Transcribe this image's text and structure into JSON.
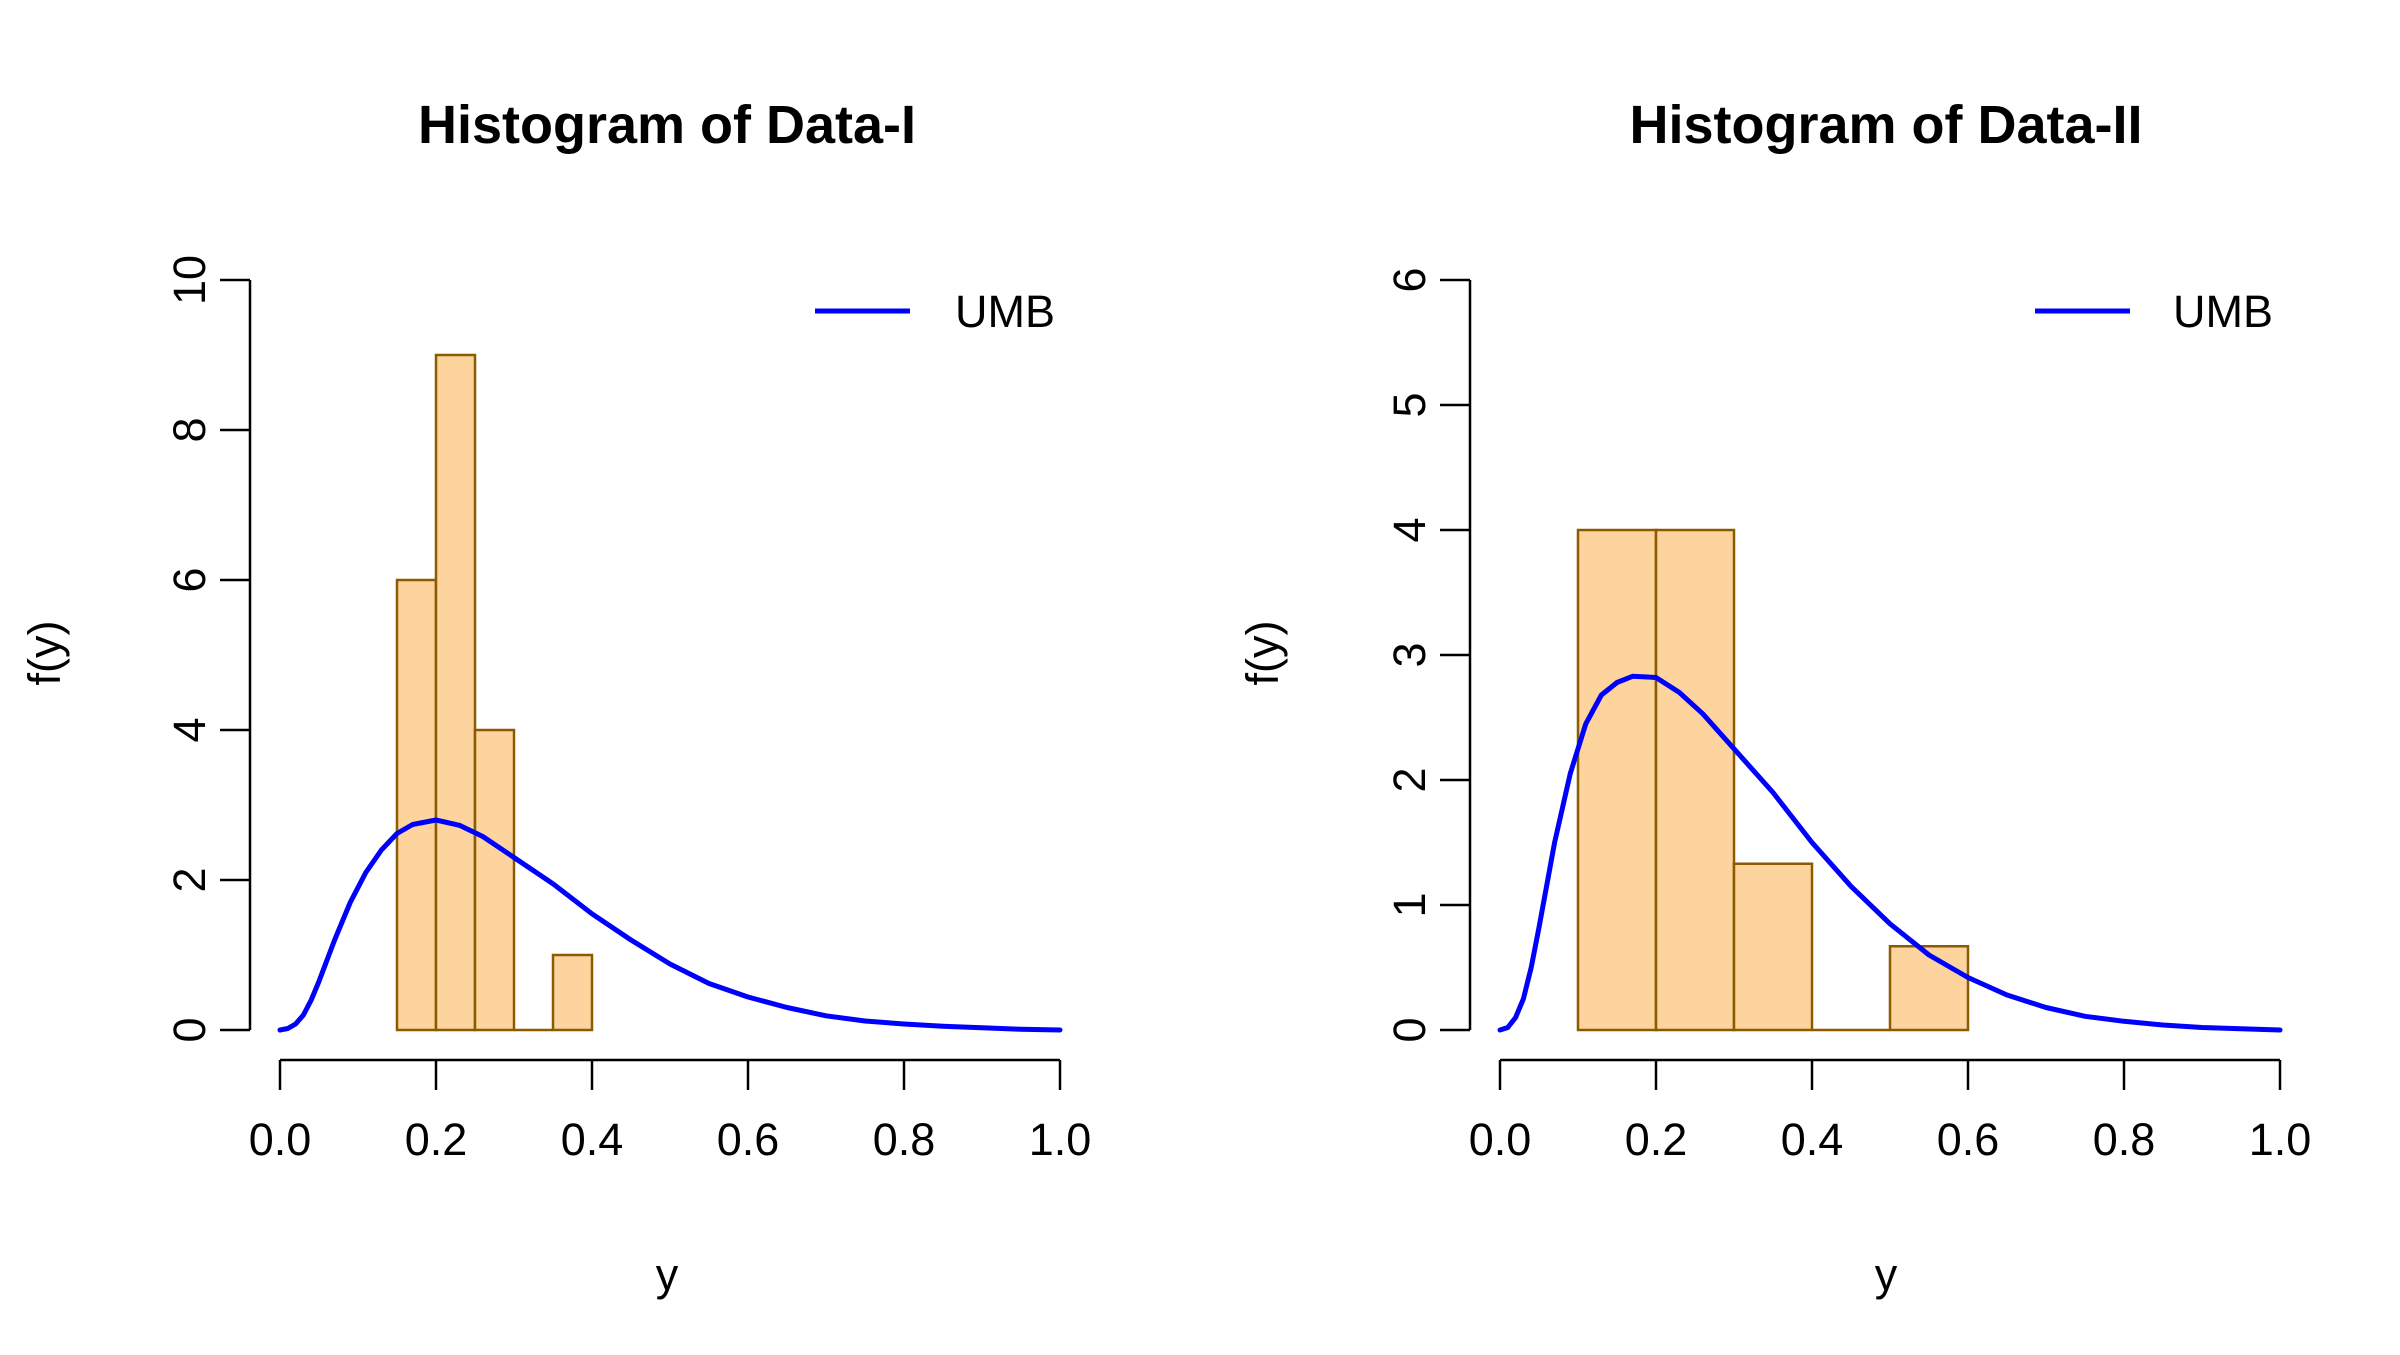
{
  "chart_data": [
    {
      "type": "bar",
      "title": "Histogram of Data-I",
      "xlabel": "y",
      "ylabel": "f(y)",
      "xlim": [
        0,
        1
      ],
      "ylim": [
        0,
        10
      ],
      "xticks": [
        "0.0",
        "0.2",
        "0.4",
        "0.6",
        "0.8",
        "1.0"
      ],
      "yticks": [
        "0",
        "2",
        "4",
        "6",
        "8",
        "10"
      ],
      "bins": [
        {
          "from": 0.15,
          "to": 0.2,
          "density": 6
        },
        {
          "from": 0.2,
          "to": 0.25,
          "density": 9
        },
        {
          "from": 0.25,
          "to": 0.3,
          "density": 4
        },
        {
          "from": 0.3,
          "to": 0.35,
          "density": 0
        },
        {
          "from": 0.35,
          "to": 0.4,
          "density": 1
        }
      ],
      "bar_fill": "#fdd49e",
      "bar_stroke": "#8c5a00",
      "series": [
        {
          "name": "UMB",
          "color": "#0000ff",
          "x": [
            0,
            0.01,
            0.02,
            0.03,
            0.04,
            0.05,
            0.07,
            0.09,
            0.11,
            0.13,
            0.15,
            0.17,
            0.2,
            0.23,
            0.26,
            0.3,
            0.35,
            0.4,
            0.45,
            0.5,
            0.55,
            0.6,
            0.65,
            0.7,
            0.75,
            0.8,
            0.85,
            0.9,
            0.95,
            1.0
          ],
          "y": [
            0,
            0.02,
            0.08,
            0.2,
            0.4,
            0.65,
            1.2,
            1.7,
            2.1,
            2.4,
            2.62,
            2.74,
            2.8,
            2.73,
            2.58,
            2.3,
            1.95,
            1.55,
            1.2,
            0.88,
            0.62,
            0.44,
            0.3,
            0.19,
            0.12,
            0.08,
            0.05,
            0.03,
            0.01,
            0
          ]
        }
      ],
      "legend": {
        "position": "top-right",
        "entries": [
          "UMB"
        ]
      }
    },
    {
      "type": "bar",
      "title": "Histogram of Data-II",
      "xlabel": "y",
      "ylabel": "f(y)",
      "xlim": [
        0,
        1
      ],
      "ylim": [
        0,
        6
      ],
      "xticks": [
        "0.0",
        "0.2",
        "0.4",
        "0.6",
        "0.8",
        "1.0"
      ],
      "yticks": [
        "0",
        "1",
        "2",
        "3",
        "4",
        "5",
        "6"
      ],
      "bins": [
        {
          "from": 0.1,
          "to": 0.2,
          "density": 4
        },
        {
          "from": 0.2,
          "to": 0.3,
          "density": 4
        },
        {
          "from": 0.3,
          "to": 0.4,
          "density": 1.33
        },
        {
          "from": 0.4,
          "to": 0.5,
          "density": 0
        },
        {
          "from": 0.5,
          "to": 0.6,
          "density": 0.67
        }
      ],
      "bar_fill": "#fdd49e",
      "bar_stroke": "#8c5a00",
      "series": [
        {
          "name": "UMB",
          "color": "#0000ff",
          "x": [
            0,
            0.01,
            0.02,
            0.03,
            0.04,
            0.05,
            0.07,
            0.09,
            0.11,
            0.13,
            0.15,
            0.17,
            0.2,
            0.23,
            0.26,
            0.3,
            0.35,
            0.4,
            0.45,
            0.5,
            0.55,
            0.6,
            0.65,
            0.7,
            0.75,
            0.8,
            0.85,
            0.9,
            0.95,
            1.0
          ],
          "y": [
            0,
            0.02,
            0.1,
            0.25,
            0.5,
            0.82,
            1.5,
            2.05,
            2.45,
            2.68,
            2.78,
            2.83,
            2.82,
            2.7,
            2.53,
            2.25,
            1.9,
            1.5,
            1.15,
            0.85,
            0.6,
            0.42,
            0.28,
            0.18,
            0.11,
            0.07,
            0.04,
            0.02,
            0.01,
            0
          ]
        }
      ],
      "legend": {
        "position": "top-right",
        "entries": [
          "UMB"
        ]
      }
    }
  ]
}
